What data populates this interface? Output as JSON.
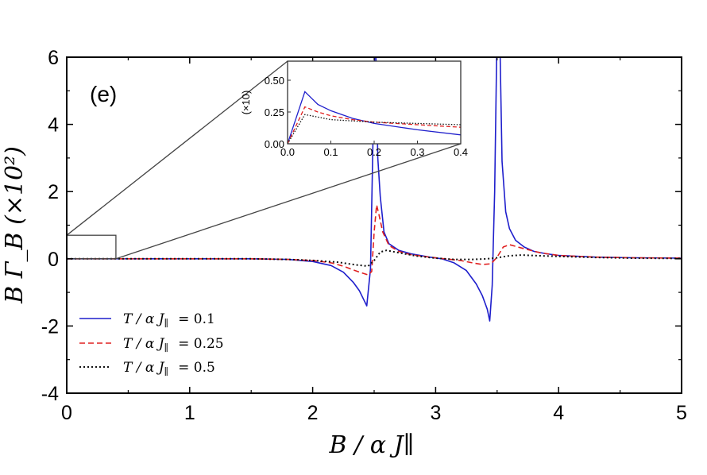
{
  "chart_data": {
    "type": "line",
    "panel_label": "(e)",
    "xlabel": "B / α J∥",
    "ylabel": "B Γ_B (×10²)",
    "xlim": [
      0,
      5
    ],
    "ylim": [
      -4,
      6
    ],
    "x_ticks": [
      "0",
      "1",
      "2",
      "3",
      "4",
      "5"
    ],
    "y_ticks": [
      "-4",
      "-2",
      "0",
      "2",
      "4",
      "6"
    ],
    "legend_position": "lower-left",
    "grid": false,
    "series": [
      {
        "name": "T / α J∥ = 0.1",
        "legend_prefix": "T / α J",
        "legend_value": "= 0.1",
        "color": "#1f1fcc",
        "style": "solid",
        "x": [
          0,
          0.5,
          1.0,
          1.5,
          1.8,
          2.0,
          2.15,
          2.25,
          2.33,
          2.38,
          2.42,
          2.44,
          2.47,
          2.49,
          2.51,
          2.53,
          2.55,
          2.58,
          2.62,
          2.7,
          2.8,
          2.95,
          3.05,
          3.15,
          3.25,
          3.33,
          3.38,
          3.42,
          3.44,
          3.46,
          3.48,
          3.5,
          3.52,
          3.54,
          3.57,
          3.6,
          3.65,
          3.72,
          3.8,
          3.9,
          4.0,
          4.3,
          4.6,
          5.0
        ],
        "y": [
          0,
          0,
          0,
          0,
          -0.02,
          -0.08,
          -0.2,
          -0.4,
          -0.7,
          -0.95,
          -1.25,
          -1.4,
          -0.3,
          3.5,
          7.0,
          3.0,
          1.85,
          0.8,
          0.45,
          0.25,
          0.15,
          0.05,
          0.0,
          -0.12,
          -0.35,
          -0.75,
          -1.1,
          -1.5,
          -1.85,
          -0.8,
          2.0,
          7.0,
          7.0,
          2.9,
          1.4,
          0.9,
          0.55,
          0.35,
          0.22,
          0.15,
          0.1,
          0.05,
          0.03,
          0.02
        ]
      },
      {
        "name": "T / α J∥ = 0.25",
        "legend_prefix": "T / α J",
        "legend_value": "= 0.25",
        "color": "#e02020",
        "style": "dashed",
        "x": [
          0,
          0.5,
          1.0,
          1.5,
          1.8,
          2.0,
          2.15,
          2.25,
          2.33,
          2.4,
          2.45,
          2.48,
          2.5,
          2.52,
          2.54,
          2.57,
          2.62,
          2.7,
          2.8,
          2.95,
          3.1,
          3.2,
          3.3,
          3.38,
          3.45,
          3.5,
          3.55,
          3.6,
          3.7,
          3.85,
          4.0,
          4.3,
          4.6,
          5.0
        ],
        "y": [
          0,
          0,
          0,
          0,
          -0.02,
          -0.05,
          -0.12,
          -0.22,
          -0.33,
          -0.42,
          -0.48,
          -0.38,
          0.8,
          1.6,
          1.3,
          0.8,
          0.4,
          0.22,
          0.12,
          0.05,
          -0.01,
          -0.05,
          -0.12,
          -0.17,
          -0.15,
          0.05,
          0.35,
          0.42,
          0.32,
          0.18,
          0.1,
          0.05,
          0.03,
          0.02
        ]
      },
      {
        "name": "T / α J∥ = 0.5",
        "legend_prefix": "T / α J",
        "legend_value": "= 0.5",
        "color": "#111111",
        "style": "dotted",
        "x": [
          0,
          0.5,
          1.0,
          1.5,
          1.8,
          2.0,
          2.2,
          2.35,
          2.45,
          2.5,
          2.55,
          2.6,
          2.7,
          2.85,
          3.0,
          3.15,
          3.3,
          3.42,
          3.5,
          3.6,
          3.7,
          3.85,
          4.0,
          4.3,
          4.6,
          5.0
        ],
        "y": [
          0,
          0,
          0,
          0,
          -0.02,
          -0.05,
          -0.1,
          -0.18,
          -0.22,
          -0.05,
          0.2,
          0.25,
          0.18,
          0.08,
          0.02,
          -0.02,
          -0.02,
          0.0,
          0.03,
          0.09,
          0.11,
          0.09,
          0.07,
          0.04,
          0.02,
          0.01
        ]
      }
    ],
    "zoom_box": {
      "xlim": [
        0,
        0.4
      ],
      "ylim": [
        0,
        0.7
      ]
    },
    "inset": {
      "xlim": [
        0,
        0.4
      ],
      "ylim": [
        0,
        0.65
      ],
      "ylabel": "(×10)",
      "x_ticks": [
        "0.0",
        "0.1",
        "0.2",
        "0.3",
        "0.4"
      ],
      "y_ticks": [
        "0.00",
        "0.25",
        "0.50"
      ],
      "series": [
        {
          "color": "#1f1fcc",
          "style": "solid",
          "x": [
            0,
            0.04,
            0.07,
            0.1,
            0.15,
            0.2,
            0.3,
            0.4
          ],
          "y": [
            0.0,
            0.41,
            0.31,
            0.26,
            0.2,
            0.16,
            0.11,
            0.07
          ]
        },
        {
          "color": "#e02020",
          "style": "dashed",
          "x": [
            0,
            0.04,
            0.07,
            0.1,
            0.15,
            0.2,
            0.3,
            0.4
          ],
          "y": [
            0.0,
            0.29,
            0.25,
            0.22,
            0.19,
            0.17,
            0.15,
            0.13
          ]
        },
        {
          "color": "#111111",
          "style": "dotted",
          "x": [
            0,
            0.04,
            0.07,
            0.1,
            0.15,
            0.2,
            0.3,
            0.4
          ],
          "y": [
            0.0,
            0.23,
            0.21,
            0.19,
            0.18,
            0.17,
            0.16,
            0.15
          ]
        }
      ]
    }
  }
}
